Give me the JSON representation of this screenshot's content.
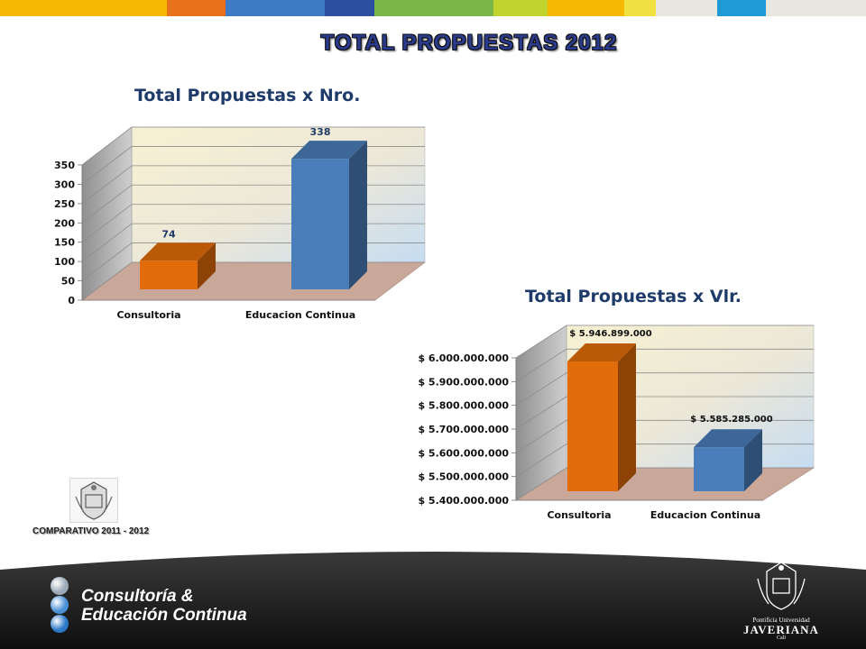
{
  "page": {
    "title": "TOTAL PROPUESTAS    2012",
    "comparativo": "COMPARATIVO 2011 - 2012"
  },
  "top_bar_colors": [
    "#f5b800",
    "#e8721c",
    "#3f7cc7",
    "#2c4fa0",
    "#7ab648",
    "#c1d32f",
    "#f5b800",
    "#f0e040",
    "#e8e8e0",
    "#1e9ad6",
    "#e8e8e0"
  ],
  "footer": {
    "brand_line1": "Consultoría &",
    "brand_line2": "Educación Continua",
    "university_line1": "Pontificia Universidad",
    "university_line2": "JAVERIANA",
    "university_line3": "Cali",
    "dot_colors": [
      "#9aa8b8",
      "#4a90d6",
      "#2a78c8"
    ]
  },
  "chart_data": [
    {
      "type": "bar",
      "title": "Total  Propuestas x Nro.",
      "categories": [
        "Consultoria",
        "Educacion Continua"
      ],
      "values": [
        74,
        338
      ],
      "data_labels": [
        "74",
        "338"
      ],
      "colors": [
        "#e36c0a",
        "#4a7ebb"
      ],
      "ylim": [
        0,
        350
      ],
      "yticks": [
        0,
        50,
        100,
        150,
        200,
        250,
        300,
        350
      ],
      "ytick_labels": [
        "0",
        "50",
        "100",
        "150",
        "200",
        "250",
        "300",
        "350"
      ],
      "grid": true,
      "legend": "none",
      "style": "3d"
    },
    {
      "type": "bar",
      "title": "Total Propuestas x Vlr.",
      "categories": [
        "Consultoria",
        "Educacion Continua"
      ],
      "values": [
        5946899000,
        5585285000
      ],
      "data_labels": [
        "$ 5.946.899.000",
        "$ 5.585.285.000"
      ],
      "colors": [
        "#e36c0a",
        "#4a7ebb"
      ],
      "ylim": [
        5400000000,
        6000000000
      ],
      "yticks": [
        5400000000,
        5500000000,
        5600000000,
        5700000000,
        5800000000,
        5900000000,
        6000000000
      ],
      "ytick_labels": [
        "$ 5.400.000.000",
        "$ 5.500.000.000",
        "$ 5.600.000.000",
        "$ 5.700.000.000",
        "$ 5.800.000.000",
        "$ 5.900.000.000",
        "$ 6.000.000.000"
      ],
      "grid": true,
      "legend": "none",
      "style": "3d"
    }
  ]
}
